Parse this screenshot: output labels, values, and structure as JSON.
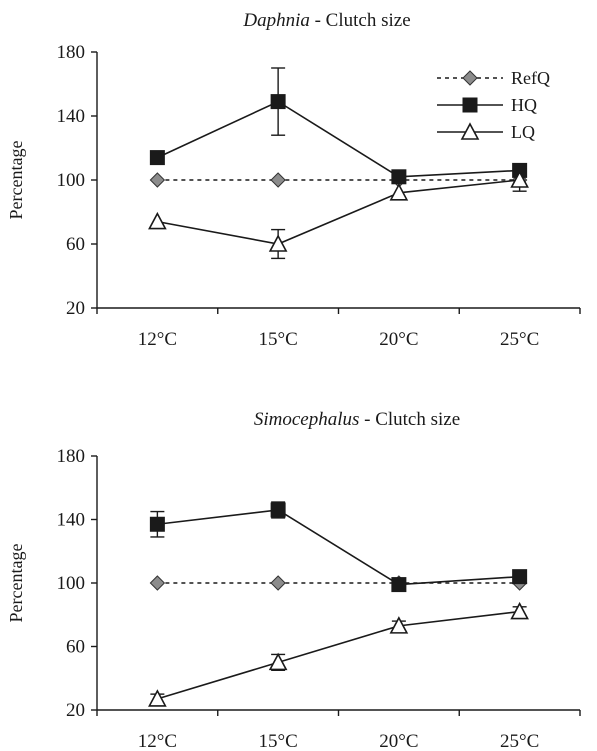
{
  "chart_data": [
    {
      "type": "line",
      "title_italic": "Daphnia",
      "title_rest": " - Clutch size",
      "xlabel": "",
      "ylabel": "Percentage",
      "categories": [
        "12°C",
        "15°C",
        "20°C",
        "25°C"
      ],
      "yticks": [
        "20",
        "60",
        "100",
        "140",
        "180"
      ],
      "ylim": [
        20,
        180
      ],
      "grid": false,
      "legend_position": "top-right",
      "series": [
        {
          "name": "RefQ",
          "values": [
            100,
            100,
            100,
            100
          ],
          "err": [
            0,
            0,
            0,
            0
          ],
          "marker": "diamond",
          "dash": true,
          "fill": "#8c8c8c"
        },
        {
          "name": "HQ",
          "values": [
            114,
            149,
            102,
            106
          ],
          "err": [
            0,
            21,
            4,
            3
          ],
          "marker": "square",
          "dash": false,
          "fill": "#1a1a1a"
        },
        {
          "name": "LQ",
          "values": [
            74,
            60,
            92,
            100
          ],
          "err": [
            0,
            9,
            0,
            7
          ],
          "marker": "triangle",
          "dash": false,
          "fill": "#ffffff"
        }
      ]
    },
    {
      "type": "line",
      "title_italic": "Simocephalus",
      "title_rest": " - Clutch size",
      "xlabel": "",
      "ylabel": "Percentage",
      "categories": [
        "12°C",
        "15°C",
        "20°C",
        "25°C"
      ],
      "yticks": [
        "20",
        "60",
        "100",
        "140",
        "180"
      ],
      "ylim": [
        20,
        180
      ],
      "grid": false,
      "legend_position": "none",
      "series": [
        {
          "name": "RefQ",
          "values": [
            100,
            100,
            100,
            100
          ],
          "err": [
            0,
            0,
            0,
            0
          ],
          "marker": "diamond",
          "dash": true,
          "fill": "#8c8c8c"
        },
        {
          "name": "HQ",
          "values": [
            137,
            146,
            99,
            104
          ],
          "err": [
            8,
            5,
            3,
            2
          ],
          "marker": "square",
          "dash": false,
          "fill": "#1a1a1a"
        },
        {
          "name": "LQ",
          "values": [
            27,
            50,
            73,
            82
          ],
          "err": [
            3,
            5,
            3,
            3
          ],
          "marker": "triangle",
          "dash": false,
          "fill": "#ffffff"
        }
      ]
    }
  ]
}
